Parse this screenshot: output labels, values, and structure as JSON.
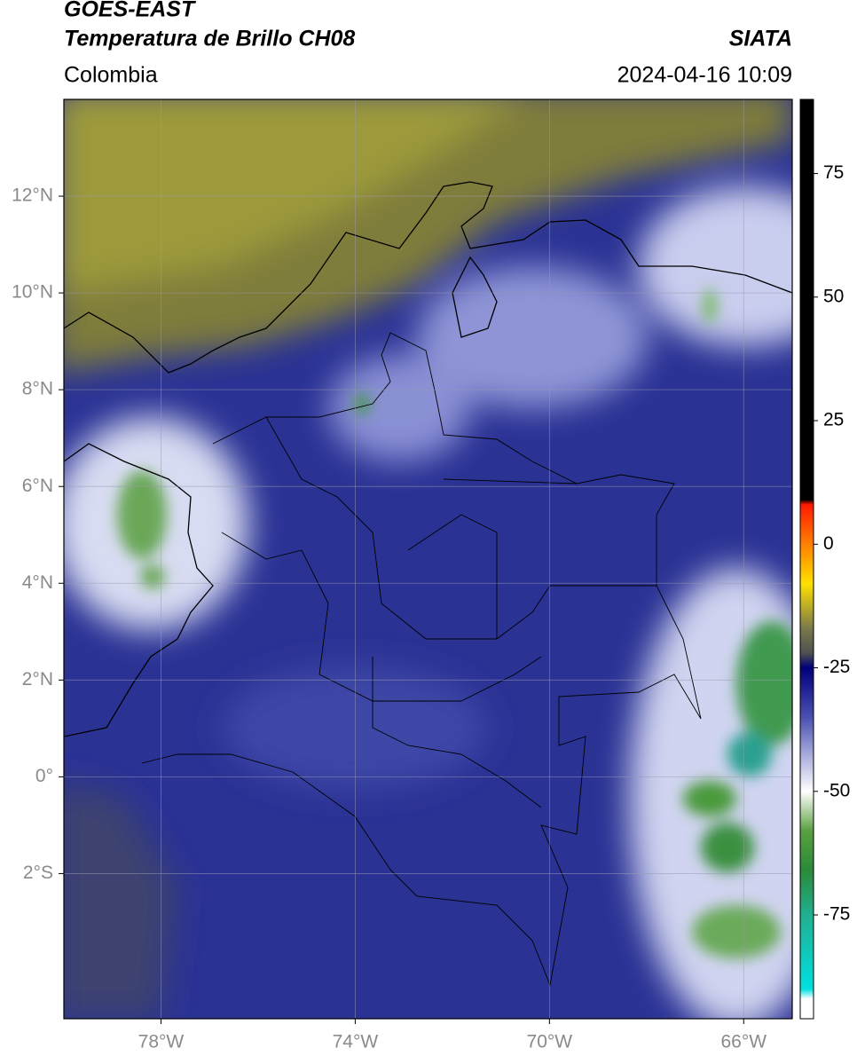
{
  "header": {
    "title1": "GOES-EAST",
    "title2": "Temperatura de Brillo CH08",
    "source": "SIATA",
    "region": "Colombia",
    "datetime": "2024-04-16 10:09"
  },
  "map": {
    "xlim": [
      -80,
      -65
    ],
    "ylim": [
      -5,
      14
    ],
    "xticks": [
      {
        "value": -78,
        "label": "78°W"
      },
      {
        "value": -74,
        "label": "74°W"
      },
      {
        "value": -70,
        "label": "70°W"
      },
      {
        "value": -66,
        "label": "66°W"
      }
    ],
    "yticks": [
      {
        "value": 12,
        "label": "12°N"
      },
      {
        "value": 10,
        "label": "10°N"
      },
      {
        "value": 8,
        "label": "8°N"
      },
      {
        "value": 6,
        "label": "6°N"
      },
      {
        "value": 4,
        "label": "4°N"
      },
      {
        "value": 2,
        "label": "2°N"
      },
      {
        "value": 0,
        "label": "0°"
      },
      {
        "value": -2,
        "label": "2°S"
      }
    ],
    "grid": true
  },
  "colorbar": {
    "lim": [
      -96,
      90
    ],
    "ticks": [
      75,
      50,
      25,
      0,
      -25,
      -50,
      -75
    ],
    "colormap": [
      {
        "value": 90,
        "color": "#000000"
      },
      {
        "value": 9,
        "color": "#000000"
      },
      {
        "value": 8,
        "color": "#ff1a00"
      },
      {
        "value": 0,
        "color": "#ff8000"
      },
      {
        "value": -8,
        "color": "#ffe000"
      },
      {
        "value": -17,
        "color": "#7a7a4a"
      },
      {
        "value": -22,
        "color": "#505050"
      },
      {
        "value": -25,
        "color": "#00007a"
      },
      {
        "value": -35,
        "color": "#4a50b0"
      },
      {
        "value": -42,
        "color": "#a0a4d8"
      },
      {
        "value": -50,
        "color": "#ffffff"
      },
      {
        "value": -58,
        "color": "#5aa040"
      },
      {
        "value": -66,
        "color": "#2a8a3a"
      },
      {
        "value": -75,
        "color": "#20b090"
      },
      {
        "value": -90,
        "color": "#00e0e0"
      },
      {
        "value": -92,
        "color": "#ffffff"
      },
      {
        "value": -96,
        "color": "#ffffff"
      }
    ]
  }
}
